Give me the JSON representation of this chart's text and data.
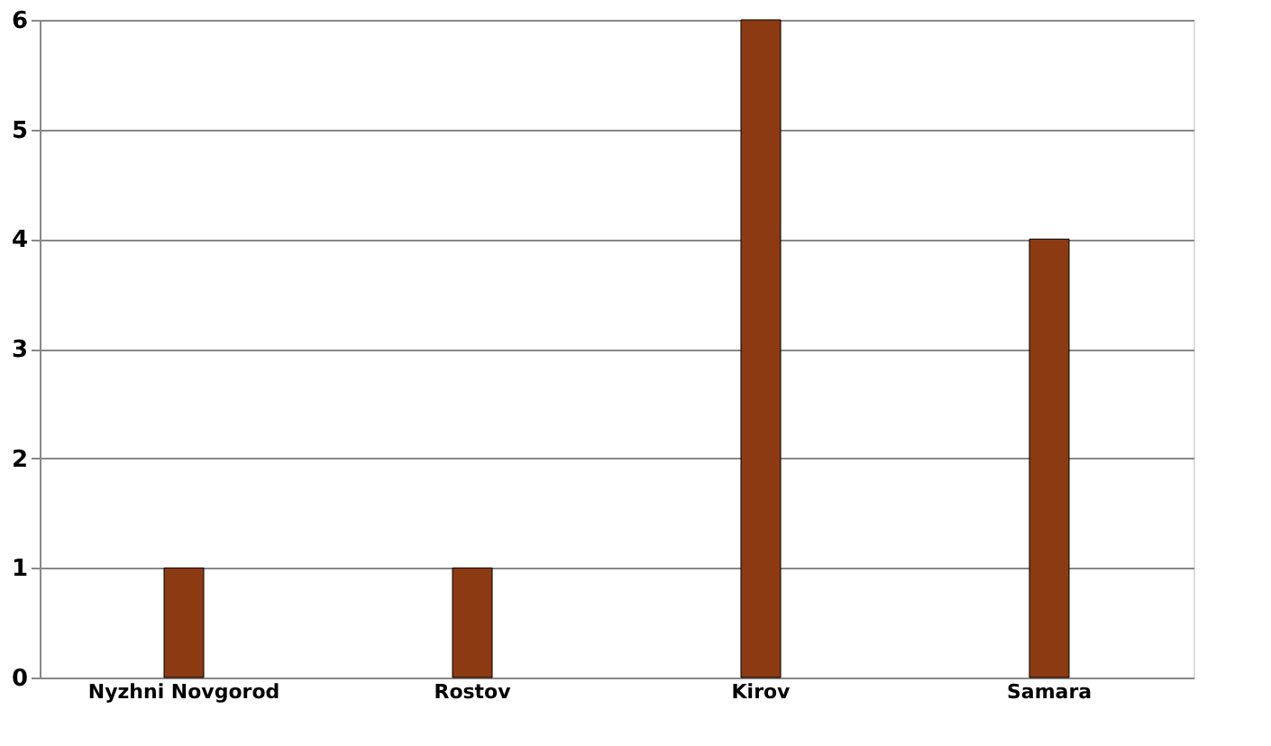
{
  "chart_data": {
    "type": "bar",
    "categories": [
      "Nyzhni Novgorod",
      "Rostov",
      "Kirov",
      "Samara"
    ],
    "values": [
      1,
      1,
      6,
      4
    ],
    "color": "#8b3a12",
    "ylim": [
      0,
      6
    ],
    "yticks": [
      0,
      1,
      2,
      3,
      4,
      5,
      6
    ],
    "grid": "y"
  }
}
